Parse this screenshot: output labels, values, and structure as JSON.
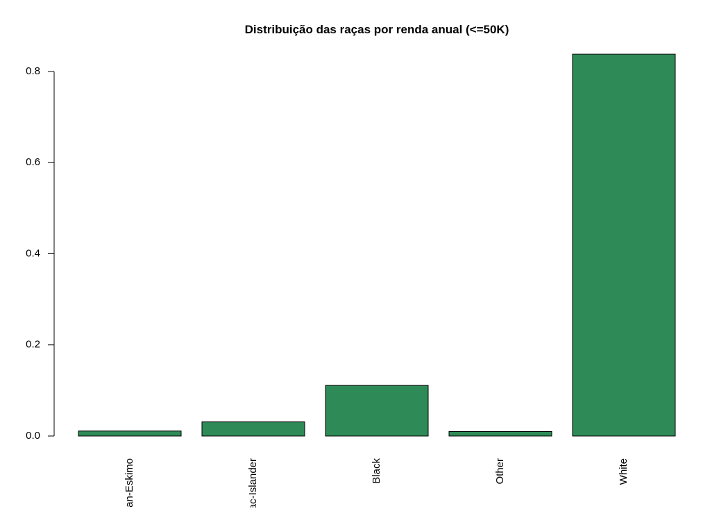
{
  "chart_data": {
    "type": "bar",
    "title": "Distribuição das raças por renda anual (<=50K)",
    "xlabel": "",
    "ylabel": "",
    "categories": [
      "ian-Eskimo",
      "ac-Islander",
      "Black",
      "Other",
      "White"
    ],
    "values": [
      0.011,
      0.031,
      0.111,
      0.01,
      0.838
    ],
    "ylim": [
      0,
      0.8
    ],
    "yticks": [
      0.0,
      0.2,
      0.4,
      0.6,
      0.8
    ],
    "ytick_labels": [
      "0.0",
      "0.2",
      "0.4",
      "0.6",
      "0.8"
    ],
    "grid": false,
    "legend": "none",
    "bar_color": "#2e8b57",
    "bar_border_color": "#000000"
  }
}
